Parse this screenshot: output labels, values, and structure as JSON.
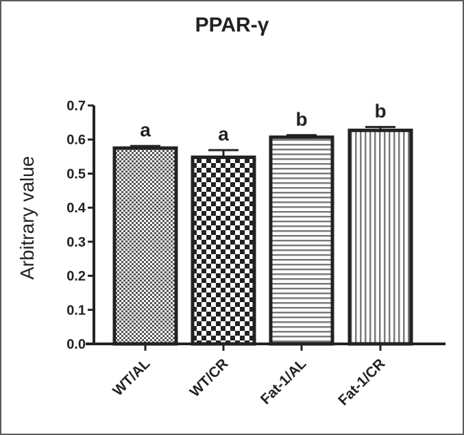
{
  "chart_data": {
    "type": "bar",
    "title": "PPAR-γ",
    "xlabel": "",
    "ylabel": "Arbitrary value",
    "ylim": [
      0.0,
      0.7
    ],
    "yticks": [
      "0.0",
      "0.1",
      "0.2",
      "0.3",
      "0.4",
      "0.5",
      "0.6",
      "0.7"
    ],
    "grid": false,
    "legend": null,
    "categories": [
      "WT/AL",
      "WT/CR",
      "Fat-1/AL",
      "Fat-1/CR"
    ],
    "values": [
      0.575,
      0.548,
      0.607,
      0.627
    ],
    "errors": [
      0.006,
      0.021,
      0.006,
      0.01
    ],
    "significance_letters": [
      "a",
      "a",
      "b",
      "b"
    ],
    "fill_patterns": [
      "fine-checker",
      "coarse-checker",
      "horizontal-stripes",
      "vertical-stripes"
    ]
  },
  "colors": {
    "ink": "#222222",
    "frame": "#5a5a5a",
    "stripe": "#7a7a7a"
  }
}
